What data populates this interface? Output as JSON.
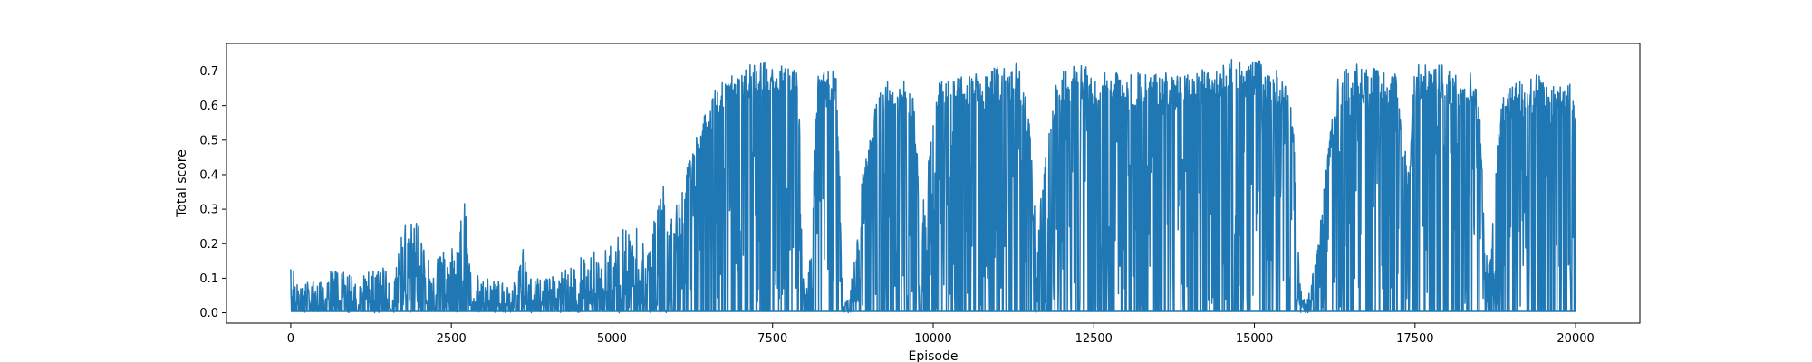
{
  "chart_data": {
    "type": "line",
    "title": "",
    "xlabel": "Episode",
    "ylabel": "Total score",
    "xlim": [
      -1000,
      21000
    ],
    "ylim": [
      -0.03,
      0.78
    ],
    "xticks": [
      0,
      2500,
      5000,
      7500,
      10000,
      12500,
      15000,
      17500,
      20000
    ],
    "xtick_labels": [
      "0",
      "2500",
      "5000",
      "7500",
      "10000",
      "12500",
      "15000",
      "17500",
      "20000"
    ],
    "yticks": [
      0.0,
      0.1,
      0.2,
      0.3,
      0.4,
      0.5,
      0.6,
      0.7
    ],
    "ytick_labels": [
      "0.0",
      "0.1",
      "0.2",
      "0.3",
      "0.4",
      "0.5",
      "0.6",
      "0.7"
    ],
    "grid": false,
    "legend": "none",
    "series": [
      {
        "color": "#1f77b4",
        "x": [
          0,
          80,
          150,
          300,
          450,
          600,
          800,
          1000,
          1200,
          1400,
          1600,
          1750,
          1850,
          1950,
          2050,
          2200,
          2400,
          2600,
          2700,
          2750,
          2800,
          3000,
          3200,
          3400,
          3500,
          3600,
          3700,
          3800,
          4000,
          4200,
          4400,
          4600,
          4800,
          5000,
          5200,
          5300,
          5400,
          5500,
          5600,
          5700,
          5800,
          5850,
          5900,
          6000,
          6100,
          6200,
          6300,
          6400,
          6500,
          6600,
          6700,
          6800,
          6900,
          7000,
          7100,
          7200,
          7300,
          7400,
          7500,
          7600,
          7700,
          7800,
          7900,
          8000,
          8100,
          8200,
          8300,
          8400,
          8500,
          8600,
          8700,
          8800,
          8900,
          9000,
          9100,
          9200,
          9300,
          9400,
          9500,
          9600,
          9700,
          9800,
          9900,
          10000,
          10100,
          10200,
          10300,
          10400,
          10500,
          10600,
          10700,
          10800,
          10900,
          11000,
          11100,
          11200,
          11300,
          11400,
          11500,
          11600,
          11700,
          11800,
          11900,
          12000,
          12100,
          12200,
          12300,
          12400,
          12500,
          12600,
          12700,
          12800,
          12900,
          13000,
          13100,
          13200,
          13300,
          13400,
          13500,
          13600,
          13700,
          13800,
          13900,
          14000,
          14100,
          14200,
          14300,
          14400,
          14500,
          14600,
          14700,
          14800,
          14900,
          15000,
          15100,
          15200,
          15300,
          15400,
          15500,
          15600,
          15700,
          15800,
          15900,
          16000,
          16100,
          16200,
          16300,
          16400,
          16500,
          16600,
          16700,
          16800,
          16900,
          17000,
          17100,
          17200,
          17300,
          17400,
          17500,
          17600,
          17700,
          17800,
          17900,
          18000,
          18100,
          18200,
          18300,
          18400,
          18500,
          18600,
          18700,
          18800,
          18900,
          19000,
          19100,
          19200,
          19300,
          19400,
          19500,
          19600,
          19700,
          19800,
          19900,
          20000
        ],
        "y": [
          0.15,
          0.1,
          0.08,
          0.09,
          0.1,
          0.12,
          0.13,
          0.1,
          0.12,
          0.14,
          0.1,
          0.25,
          0.26,
          0.33,
          0.2,
          0.15,
          0.18,
          0.2,
          0.35,
          0.22,
          0.12,
          0.1,
          0.1,
          0.08,
          0.09,
          0.23,
          0.1,
          0.1,
          0.1,
          0.12,
          0.14,
          0.18,
          0.18,
          0.2,
          0.25,
          0.22,
          0.25,
          0.2,
          0.23,
          0.3,
          0.38,
          0.25,
          0.3,
          0.32,
          0.36,
          0.45,
          0.5,
          0.55,
          0.6,
          0.65,
          0.68,
          0.69,
          0.7,
          0.7,
          0.72,
          0.73,
          0.72,
          0.74,
          0.73,
          0.7,
          0.74,
          0.72,
          0.7,
          0.02,
          0.2,
          0.69,
          0.7,
          0.7,
          0.71,
          0.02,
          0.05,
          0.2,
          0.4,
          0.5,
          0.6,
          0.66,
          0.68,
          0.65,
          0.68,
          0.66,
          0.62,
          0.3,
          0.4,
          0.55,
          0.68,
          0.7,
          0.7,
          0.69,
          0.7,
          0.68,
          0.7,
          0.69,
          0.7,
          0.72,
          0.72,
          0.7,
          0.73,
          0.68,
          0.55,
          0.25,
          0.4,
          0.55,
          0.66,
          0.7,
          0.7,
          0.72,
          0.72,
          0.71,
          0.7,
          0.68,
          0.7,
          0.69,
          0.7,
          0.7,
          0.7,
          0.71,
          0.7,
          0.69,
          0.7,
          0.71,
          0.68,
          0.7,
          0.69,
          0.7,
          0.7,
          0.71,
          0.69,
          0.7,
          0.72,
          0.73,
          0.74,
          0.74,
          0.72,
          0.73,
          0.74,
          0.71,
          0.7,
          0.71,
          0.65,
          0.58,
          0.1,
          0.02,
          0.1,
          0.22,
          0.4,
          0.55,
          0.68,
          0.7,
          0.72,
          0.73,
          0.7,
          0.72,
          0.71,
          0.72,
          0.7,
          0.71,
          0.55,
          0.4,
          0.73,
          0.72,
          0.73,
          0.72,
          0.73,
          0.72,
          0.71,
          0.7,
          0.69,
          0.7,
          0.62,
          0.2,
          0.25,
          0.55,
          0.65,
          0.66,
          0.68,
          0.66,
          0.68,
          0.7,
          0.69,
          0.68,
          0.66,
          0.65,
          0.68,
          0.6
        ]
      }
    ]
  }
}
